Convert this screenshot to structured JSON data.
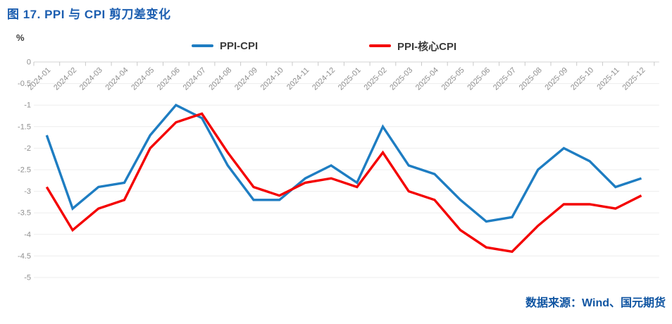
{
  "page": {
    "title": "图 17. PPI 与 CPI 剪刀差变化",
    "source": "数据来源：Wind、国元期货"
  },
  "colors": {
    "title_blue": "#1c5eb0",
    "source_blue": "#1055a2",
    "axis_label_gray": "#8f8f8f",
    "gridline": "#ededed",
    "axis_line": "#d5d5d5",
    "tick_mark": "#c8c8c8"
  },
  "chart_data": {
    "type": "line",
    "title": "图 17. PPI 与 CPI 剪刀差变化",
    "unit_label": "%",
    "xlabel": "",
    "ylabel": "%",
    "ylim": [
      -5,
      0
    ],
    "ytick_step": 0.5,
    "grid": true,
    "legend_position": "top",
    "yticks": [
      "0",
      "-0.5",
      "-1",
      "-1.5",
      "-2",
      "-2.5",
      "-3",
      "-3.5",
      "-4",
      "-4.5",
      "-5"
    ],
    "categories": [
      "2024-01",
      "2024-02",
      "2024-03",
      "2024-04",
      "2024-05",
      "2024-06",
      "2024-07",
      "2024-08",
      "2024-09",
      "2024-10",
      "2024-11",
      "2024-12",
      "2025-01",
      "2025-02",
      "2025-03",
      "2025-04",
      "2025-05",
      "2025-06",
      "2025-07",
      "2025-08",
      "2025-09",
      "2025-10",
      "2025-11",
      "2025-12"
    ],
    "series": [
      {
        "name": "PPI-CPI",
        "color": "#1e7dc2",
        "values": [
          -1.7,
          -3.4,
          -2.9,
          -2.8,
          -1.7,
          -1.0,
          -1.3,
          -2.4,
          -3.2,
          -3.2,
          -2.7,
          -2.4,
          -2.8,
          -1.5,
          -2.4,
          -2.6,
          -3.2,
          -3.7,
          -3.6,
          -2.5,
          -2.0,
          -2.3,
          -2.9,
          -2.7
        ]
      },
      {
        "name": "PPI-核心CPI",
        "color": "#f40000",
        "values": [
          -2.9,
          -3.9,
          -3.4,
          -3.2,
          -2.0,
          -1.4,
          -1.2,
          -2.1,
          -2.9,
          -3.1,
          -2.8,
          -2.7,
          -2.9,
          -2.1,
          -3.0,
          -3.2,
          -3.9,
          -4.3,
          -4.4,
          -3.8,
          -3.3,
          -3.3,
          -3.4,
          -3.1
        ]
      }
    ]
  }
}
